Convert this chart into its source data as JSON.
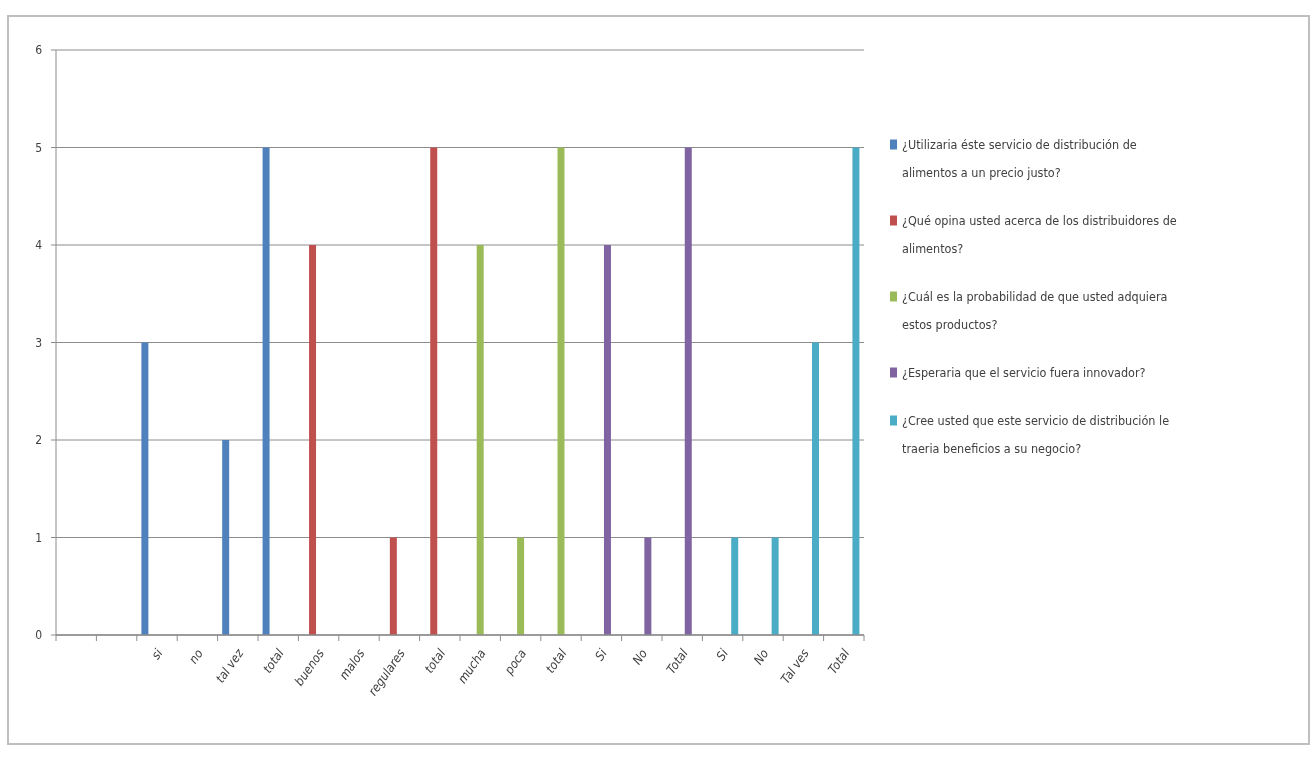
{
  "chart_data": {
    "type": "bar",
    "categories": [
      null,
      null,
      "si",
      "no",
      "tal vez",
      "total",
      "buenos",
      "malos",
      "regulares",
      "total",
      "mucha",
      "poca",
      "total",
      "Si",
      "No",
      "Total",
      "Si",
      "No",
      "Tal ves",
      "Total"
    ],
    "series": [
      {
        "name": "¿Utilizaria éste servicio de distribución de alimentos a un precio justo?",
        "color": "#4f81bd",
        "values": [
          null,
          null,
          3,
          0,
          2,
          5,
          null,
          null,
          null,
          null,
          null,
          null,
          null,
          null,
          null,
          null,
          null,
          null,
          null,
          null
        ]
      },
      {
        "name": "¿Qué opina usted acerca de los distribuidores de alimentos?",
        "color": "#c0504d",
        "values": [
          null,
          null,
          null,
          null,
          null,
          null,
          4,
          0,
          1,
          5,
          null,
          null,
          null,
          null,
          null,
          null,
          null,
          null,
          null,
          null
        ]
      },
      {
        "name": "¿Cuál es la probabilidad de que usted adquiera estos productos?",
        "color": "#9bbb59",
        "values": [
          null,
          null,
          null,
          null,
          null,
          null,
          null,
          null,
          null,
          null,
          4,
          1,
          5,
          null,
          null,
          null,
          null,
          null,
          null,
          null
        ]
      },
      {
        "name": "¿Esperaria que el servicio fuera innovador?",
        "color": "#8064a2",
        "values": [
          null,
          null,
          null,
          null,
          null,
          null,
          null,
          null,
          null,
          null,
          null,
          null,
          null,
          4,
          1,
          5,
          null,
          null,
          null,
          null
        ]
      },
      {
        "name": "¿Cree usted que este servicio de distribución le traeria beneficios a su negocio?",
        "color": "#4bacc6",
        "values": [
          null,
          null,
          null,
          null,
          null,
          null,
          null,
          null,
          null,
          null,
          null,
          null,
          null,
          null,
          null,
          null,
          1,
          1,
          3,
          5
        ]
      }
    ],
    "ylim": [
      0,
      6
    ],
    "yticks": [
      0,
      1,
      2,
      3,
      4,
      5,
      6
    ],
    "grid": "y",
    "legend": "right"
  }
}
